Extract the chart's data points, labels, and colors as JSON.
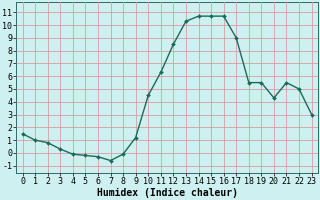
{
  "x": [
    0,
    1,
    2,
    3,
    4,
    5,
    6,
    7,
    8,
    9,
    10,
    11,
    12,
    13,
    14,
    15,
    16,
    17,
    18,
    19,
    20,
    21,
    22,
    23
  ],
  "y": [
    1.5,
    1.0,
    0.8,
    0.3,
    -0.1,
    -0.2,
    -0.3,
    -0.6,
    -0.1,
    1.2,
    4.5,
    6.3,
    8.5,
    10.3,
    10.7,
    10.7,
    10.7,
    9.0,
    5.5,
    5.5,
    4.3,
    5.5,
    5.0,
    3.0
  ],
  "line_color": "#1a6b5a",
  "marker": "D",
  "marker_size": 2.0,
  "bg_color": "#cef0f0",
  "grid_color": "#d4a0a0",
  "xlabel": "Humidex (Indice chaleur)",
  "xlim": [
    -0.5,
    23.5
  ],
  "ylim": [
    -1.6,
    11.8
  ],
  "xticks": [
    0,
    1,
    2,
    3,
    4,
    5,
    6,
    7,
    8,
    9,
    10,
    11,
    12,
    13,
    14,
    15,
    16,
    17,
    18,
    19,
    20,
    21,
    22,
    23
  ],
  "yticks": [
    -1,
    0,
    1,
    2,
    3,
    4,
    5,
    6,
    7,
    8,
    9,
    10,
    11
  ],
  "xlabel_fontsize": 7,
  "tick_fontsize": 6
}
